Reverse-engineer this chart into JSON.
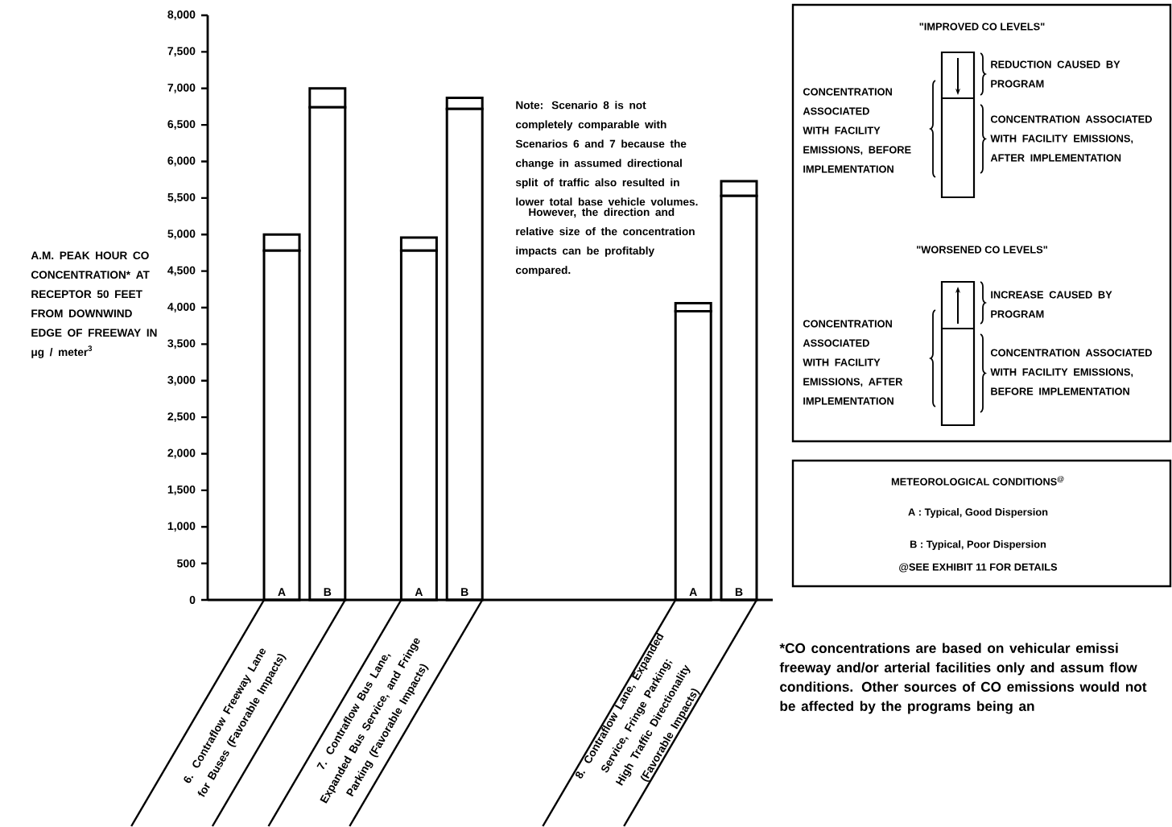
{
  "chart_data": {
    "type": "bar",
    "stacked": true,
    "ylabel": "A.M. PEAK HOUR CO CONCENTRATION* AT RECEPTOR 50 FEET FROM DOWNWIND EDGE OF FREEWAY IN μg / meter$^{3}$",
    "categories": [
      "A",
      "B",
      null,
      "A",
      "B",
      null,
      null,
      null,
      null,
      "A",
      "B"
    ],
    "series": [
      {
        "color": "#ffffff",
        "values": [
          4780,
          6740,
          null,
          4780,
          6720,
          null,
          null,
          null,
          null,
          3950,
          5530
        ]
      },
      {
        "color": "#ffffff",
        "values": [
          220,
          260,
          null,
          180,
          150,
          null,
          null,
          null,
          null,
          110,
          200
        ]
      }
    ],
    "ylim": [
      0,
      8000
    ],
    "yticks": [
      0,
      500,
      {
        "value": 1000,
        "label": "1,000"
      },
      {
        "value": 1500,
        "label": "1,500"
      },
      {
        "value": 2000,
        "label": "2,000"
      },
      {
        "value": 2500,
        "label": "2,500"
      },
      {
        "value": 3000,
        "label": "3,000"
      },
      {
        "value": 3500,
        "label": "3,500"
      },
      {
        "value": 4000,
        "label": "4,000"
      },
      {
        "value": 4500,
        "label": "4,500"
      },
      {
        "value": 5000,
        "label": "5,000"
      },
      {
        "value": 5500,
        "label": "5,500"
      },
      {
        "value": 6000,
        "label": "6,000"
      },
      {
        "value": 6500,
        "label": "6,500"
      },
      {
        "value": 7000,
        "label": "7,000"
      },
      {
        "value": 7500,
        "label": "7,500"
      },
      {
        "value": 8000,
        "label": "8,000"
      }
    ],
    "annotations": [
      "Note: Scenario 8 is not completely comparable with Scenarios 6 and 7 because the change in assumed directional split of traffic also resulted in lower total base vehicle volumes.",
      "However, the direction and relative size of the concentration impacts can be profitably compared.",
      "6. Contraflow Freeway Lane for Buses (Favorable Impacts)",
      "7. Contraflow Bus Lane, Expanded Bus Service, and Fringe Parking (Favorable Impacts)",
      "8. Contraflow Lane, Expanded Service, Fringe Parking; High Traffic Directionality (Favorable Impacts)",
      "\"IMPROVED CO LEVELS\"",
      "CONCENTRATION ASSOCIATED WITH FACILITY EMISSIONS, BEFORE IMPLEMENTATION",
      "REDUCTION CAUSED BY PROGRAM",
      "CONCENTRATION ASSOCIATED WITH FACILITY EMISSIONS, AFTER IMPLEMENTATION",
      "\"WORSENED CO LEVELS\"",
      "CONCENTRATION ASSOCIATED WITH FACILITY EMISSIONS, AFTER IMPLEMENTATION",
      "INCREASE CAUSED BY PROGRAM",
      "CONCENTRATION ASSOCIATED WITH FACILITY EMISSIONS, BEFORE IMPLEMENTATION",
      "METEOROLOGICAL CONDITIONS$^{@}$",
      "A : Typical, Good Dispersion",
      "B : Typical, Poor Dispersion",
      "@SEE EXHIBIT 11 FOR DETAILS",
      "*CO concentrations are based on vehicular emissi freeway and/or arterial facilities only and assum flow conditions. Other sources of CO emissions would not be affected by the programs being an"
    ]
  }
}
